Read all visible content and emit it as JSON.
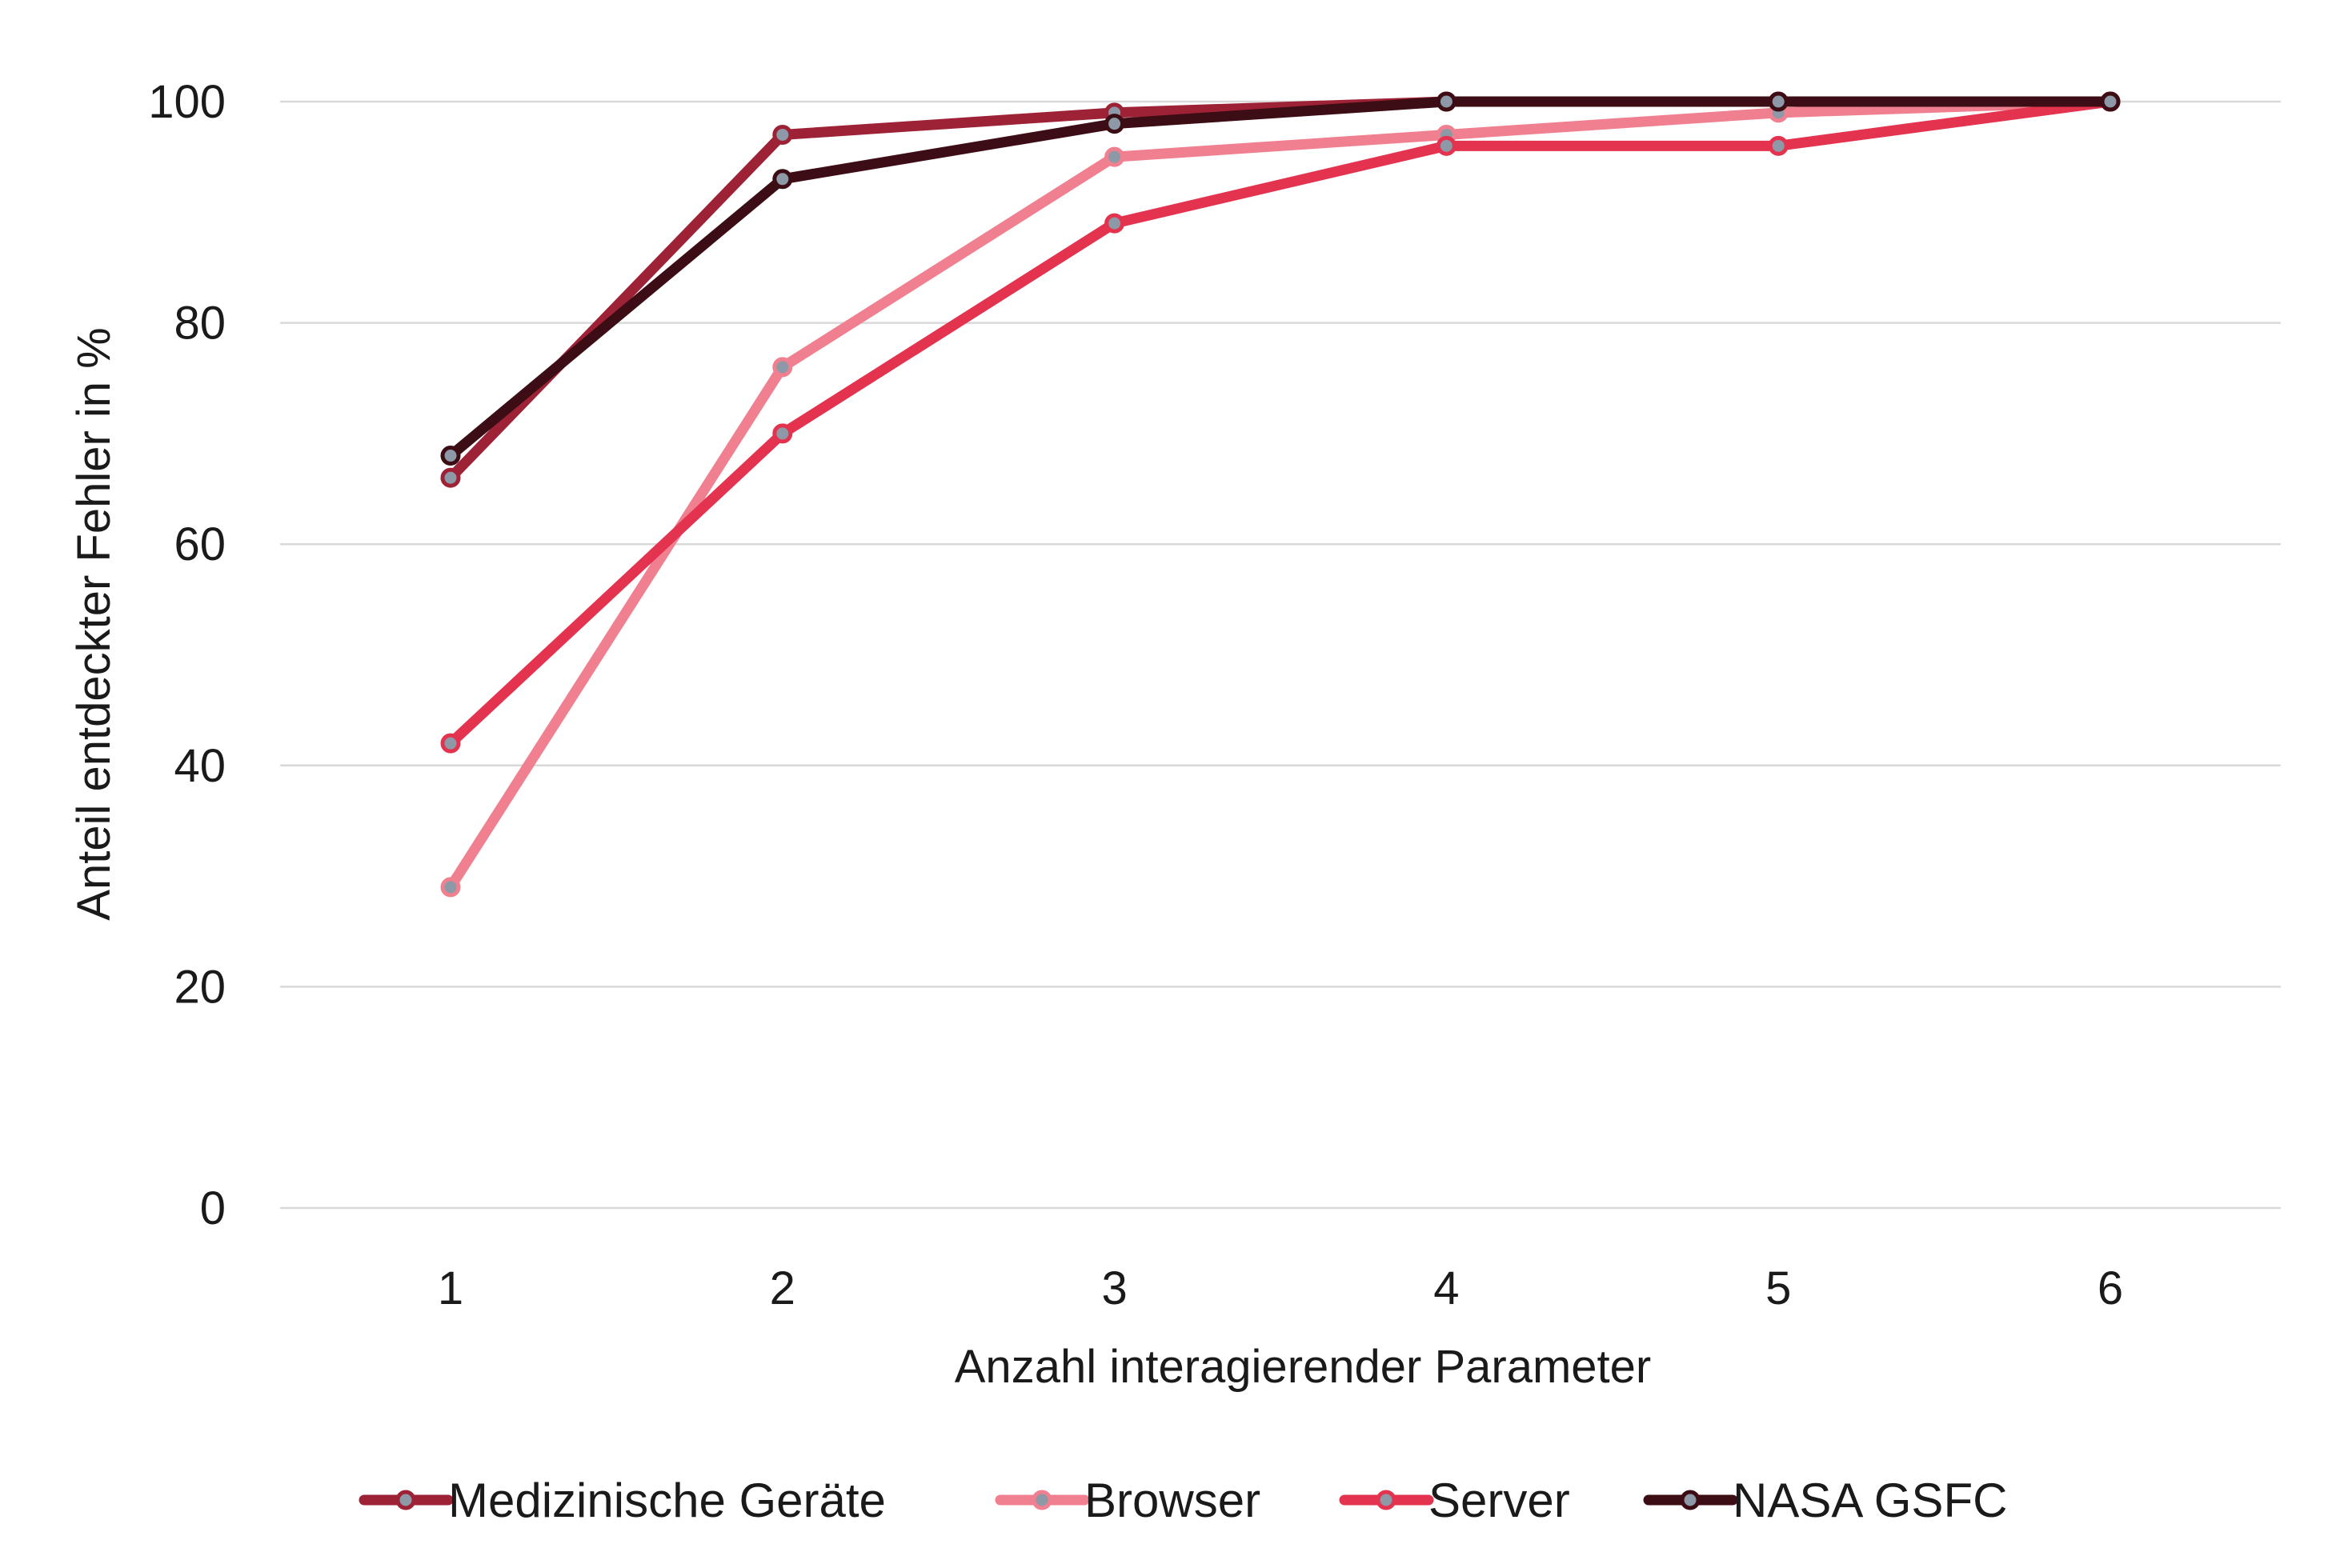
{
  "chart_data": {
    "type": "line",
    "xlabel": "Anzahl interagierender Parameter",
    "ylabel": "Anteil entdeckter Fehler in %",
    "x": [
      1,
      2,
      3,
      4,
      5,
      6
    ],
    "x_tick_labels": [
      "1",
      "2",
      "3",
      "4",
      "5",
      "6"
    ],
    "ylim": [
      0,
      100
    ],
    "y_ticks": [
      0,
      20,
      40,
      60,
      80,
      100
    ],
    "y_tick_labels": [
      "0",
      "20",
      "40",
      "60",
      "80",
      "100"
    ],
    "grid": "horizontal",
    "legend_position": "bottom",
    "marker_color": "#8d99a6",
    "series": [
      {
        "name": "Medizinische Geräte",
        "color": "#9e2236",
        "values": [
          66,
          97,
          99,
          100,
          100,
          100
        ]
      },
      {
        "name": "Browser",
        "color": "#f0808f",
        "values": [
          29,
          76,
          95,
          97,
          99,
          100
        ]
      },
      {
        "name": "Server",
        "color": "#e3334f",
        "values": [
          42,
          70,
          89,
          96,
          96,
          100
        ]
      },
      {
        "name": "NASA GSFC",
        "color": "#3d0d15",
        "values": [
          68,
          93,
          98,
          100,
          100,
          100
        ]
      }
    ]
  }
}
